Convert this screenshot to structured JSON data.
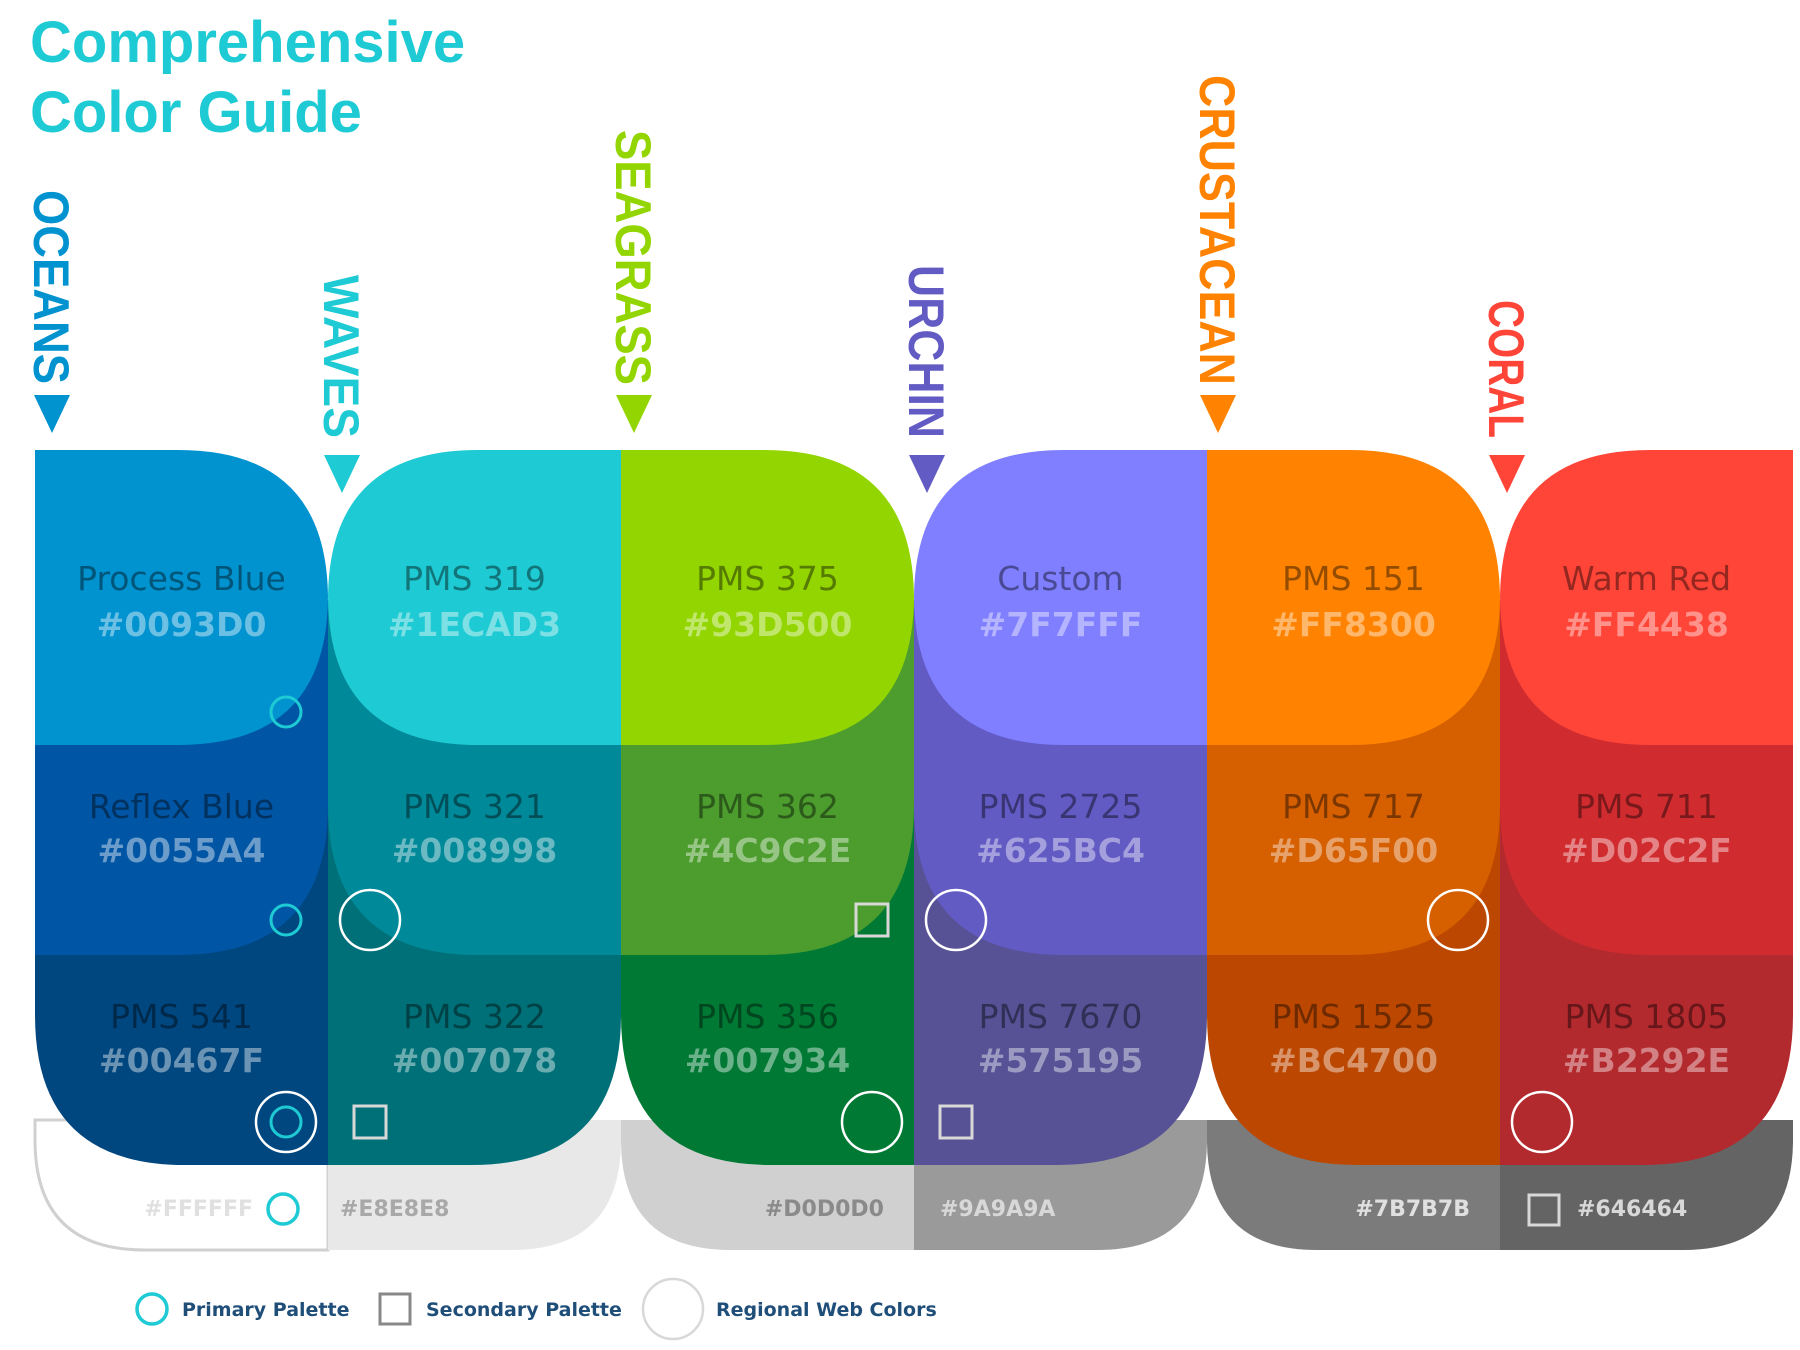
{
  "title": {
    "line1": "Comprehensive",
    "line2": "Color Guide",
    "color": "#1ECAD3"
  },
  "categories": [
    {
      "name": "OCEANS",
      "color": "#0093D0"
    },
    {
      "name": "WAVES",
      "color": "#1ECAD3"
    },
    {
      "name": "SEAGRASS",
      "color": "#93D500"
    },
    {
      "name": "URCHIN",
      "color": "#625BC4"
    },
    {
      "name": "CRUSTACEAN",
      "color": "#FF8300"
    },
    {
      "name": "CORAL",
      "color": "#FF4438"
    }
  ],
  "columns": [
    {
      "id": "oceans",
      "swatches": [
        {
          "name": "Process Blue",
          "hex": "#0093D0",
          "marker": "primary-small"
        },
        {
          "name": "Reflex Blue",
          "hex": "#0055A4",
          "marker": "primary-small"
        },
        {
          "name": "PMS 541",
          "hex": "#00467F",
          "marker": "primary-regional"
        }
      ]
    },
    {
      "id": "waves",
      "swatches": [
        {
          "name": "PMS 319",
          "hex": "#1ECAD3",
          "marker": "none"
        },
        {
          "name": "PMS 321",
          "hex": "#008998",
          "marker": "regional"
        },
        {
          "name": "PMS 322",
          "hex": "#007078",
          "marker": "secondary"
        }
      ]
    },
    {
      "id": "seagrass",
      "swatches": [
        {
          "name": "PMS 375",
          "hex": "#93D500",
          "marker": "none"
        },
        {
          "name": "PMS 362",
          "hex": "#4C9C2E",
          "marker": "secondary"
        },
        {
          "name": "PMS 356",
          "hex": "#007934",
          "marker": "regional"
        }
      ]
    },
    {
      "id": "urchin",
      "swatches": [
        {
          "name": "Custom",
          "hex": "#7F7FFF",
          "marker": "none"
        },
        {
          "name": "PMS 2725",
          "hex": "#625BC4",
          "marker": "regional"
        },
        {
          "name": "PMS 7670",
          "hex": "#575195",
          "marker": "secondary"
        }
      ]
    },
    {
      "id": "crustacean",
      "swatches": [
        {
          "name": "PMS 151",
          "hex": "#FF8300",
          "marker": "none"
        },
        {
          "name": "PMS 717",
          "hex": "#D65F00",
          "marker": "regional"
        },
        {
          "name": "PMS 1525",
          "hex": "#BC4700",
          "marker": "none"
        }
      ]
    },
    {
      "id": "coral",
      "swatches": [
        {
          "name": "Warm Red",
          "hex": "#FF4438",
          "marker": "none"
        },
        {
          "name": "PMS 711",
          "hex": "#D02C2F",
          "marker": "none"
        },
        {
          "name": "PMS 1805",
          "hex": "#B2292E",
          "marker": "regional"
        }
      ]
    }
  ],
  "grays": [
    {
      "hex": "#FFFFFF",
      "marker": "primary"
    },
    {
      "hex": "#E8E8E8",
      "marker": "none"
    },
    {
      "hex": "#D0D0D0",
      "marker": "none"
    },
    {
      "hex": "#9A9A9A",
      "marker": "none"
    },
    {
      "hex": "#7B7B7B",
      "marker": "none"
    },
    {
      "hex": "#646464",
      "marker": "secondary"
    }
  ],
  "legend": {
    "primary": "Primary Palette",
    "secondary": "Secondary Palette",
    "regional": "Regional Web Colors",
    "text_color": "#1F4E79"
  }
}
